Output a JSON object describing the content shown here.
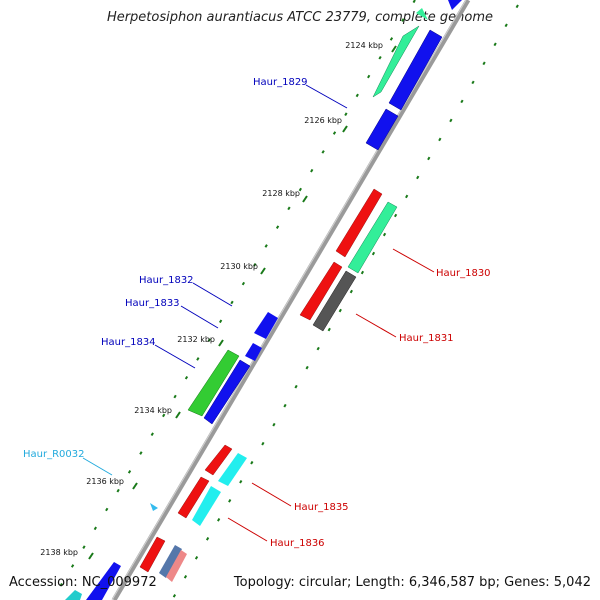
{
  "title": "Herpetosiphon aurantiacus ATCC 23779, complete genome",
  "footer": {
    "accession": "Accession: NC_009972",
    "topology": "Topology: circular; Length: 6,346,587 bp; Genes: 5,042"
  },
  "colors": {
    "backbone": "#999999",
    "tick": "#1a7a1a",
    "label_blue": "#0000bb",
    "label_red": "#cc0000",
    "label_cyan": "#22aadd"
  },
  "ticks": [
    {
      "label": "2124 kbp"
    },
    {
      "label": "2126 kbp"
    },
    {
      "label": "2128 kbp"
    },
    {
      "label": "2130 kbp"
    },
    {
      "label": "2132 kbp"
    },
    {
      "label": "2134 kbp"
    },
    {
      "label": "2136 kbp"
    },
    {
      "label": "2138 kbp"
    }
  ],
  "genes": [
    {
      "label": "Haur_1829",
      "color": "blue"
    },
    {
      "label": "Haur_1830",
      "color": "red"
    },
    {
      "label": "Haur_1831",
      "color": "red"
    },
    {
      "label": "Haur_1832",
      "color": "blue"
    },
    {
      "label": "Haur_1833",
      "color": "blue"
    },
    {
      "label": "Haur_1834",
      "color": "blue"
    },
    {
      "label": "Haur_1835",
      "color": "red"
    },
    {
      "label": "Haur_1836",
      "color": "red"
    },
    {
      "label": "Haur_R0032",
      "color": "cyan"
    }
  ]
}
